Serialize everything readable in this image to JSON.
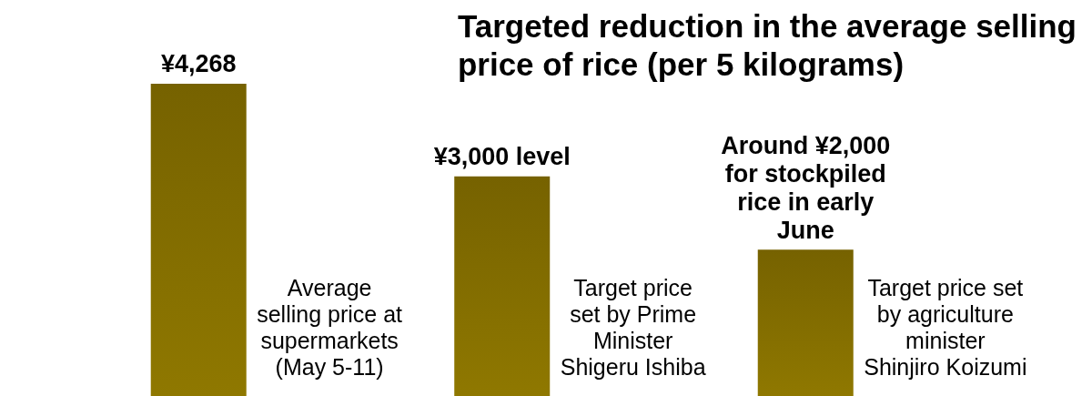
{
  "chart_data": {
    "type": "bar",
    "title": "Targeted reduction in the average selling\nprice of rice (per 5 kilograms)",
    "categories": [
      "Average\nselling price at\nsupermarkets\n(May 5-11)",
      "Target price\nset by Prime\nMinister\nShigeru Ishiba",
      "Target price set\nby agriculture\nminister\nShinjiro Koizumi"
    ],
    "values": [
      4268,
      3000,
      2000
    ],
    "value_labels": [
      "¥4,268",
      "¥3,000 level",
      "Around ¥2,000\nfor stockpiled\nrice in early\nJune"
    ],
    "color": "#8f7800"
  }
}
